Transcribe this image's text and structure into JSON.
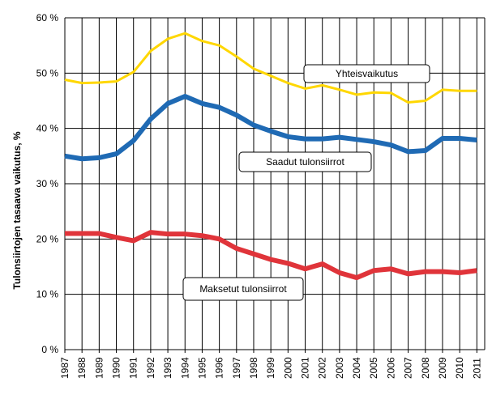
{
  "chart_data": {
    "type": "line",
    "title": "",
    "xlabel": "",
    "ylabel": "Tulonsiirtojen tasaava vaikutus, %",
    "ylim": [
      0,
      60
    ],
    "yticks": [
      "0 %",
      "10 %",
      "20 %",
      "30 %",
      "40 %",
      "50 %",
      "60 %"
    ],
    "grid": true,
    "x": [
      "1987",
      "1988",
      "1989",
      "1990",
      "1991",
      "1992",
      "1993",
      "1994",
      "1995",
      "1996",
      "1997",
      "1998",
      "1999",
      "2000",
      "2001",
      "2002",
      "2003",
      "2004",
      "2005",
      "2006",
      "2007",
      "2008",
      "2009",
      "2010",
      "2011"
    ],
    "series": [
      {
        "name": "Yhteisvaikutus",
        "color": "#ffd700",
        "values": [
          48.8,
          48.2,
          48.3,
          48.5,
          50.2,
          54.0,
          56.2,
          57.2,
          55.8,
          55.0,
          53.0,
          50.8,
          49.5,
          48.2,
          47.2,
          47.8,
          47.0,
          46.1,
          46.5,
          46.4,
          44.7,
          45.0,
          47.0,
          46.8,
          46.8
        ]
      },
      {
        "name": "Saadut tulonsiirrot",
        "color": "#1f6ab4",
        "values": [
          35.0,
          34.5,
          34.7,
          35.4,
          37.8,
          41.7,
          44.5,
          45.8,
          44.5,
          43.8,
          42.4,
          40.6,
          39.5,
          38.5,
          38.1,
          38.1,
          38.4,
          38.0,
          37.6,
          37.0,
          35.8,
          36.0,
          38.2,
          38.2,
          37.9
        ]
      },
      {
        "name": "Maksetut tulonsiirrot",
        "color": "#e0343a",
        "values": [
          21.0,
          21.0,
          21.0,
          20.3,
          19.7,
          21.2,
          20.9,
          20.9,
          20.6,
          20.0,
          18.3,
          17.3,
          16.3,
          15.6,
          14.6,
          15.5,
          13.9,
          13.0,
          14.3,
          14.6,
          13.7,
          14.1,
          14.1,
          13.9,
          14.3
        ]
      }
    ]
  }
}
